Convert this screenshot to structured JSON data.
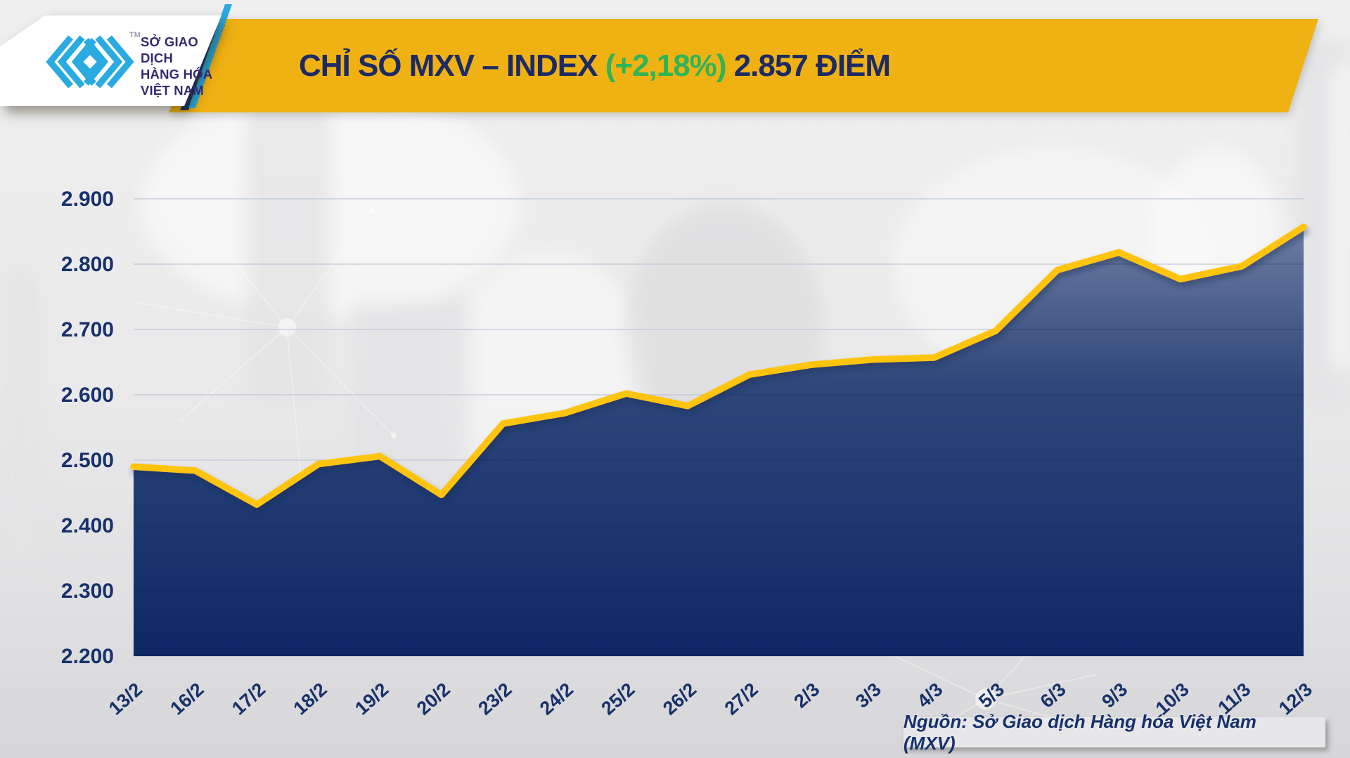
{
  "header": {
    "logo": {
      "lines": [
        "SỞ GIAO DỊCH",
        "HÀNG HÓA",
        "VIỆT NAM"
      ],
      "trademark": "TM"
    },
    "title": {
      "part1": "CHỈ SỐ MXV – INDEX ",
      "change": "(+2,18%)",
      "part2": " 2.857 ĐIỂM"
    }
  },
  "source_note": "Nguồn: Sở Giao dịch Hàng hóa Việt Nam (MXV)",
  "colors": {
    "banner_yellow": "#F0B213",
    "line_yellow": "#FFC40D",
    "title_navy": "#1C2A66",
    "change_green": "#2FB457",
    "axis_text_navy": "#17316B",
    "logo_cyan": "#29ABE2",
    "logo_text_indigo": "#332A6E",
    "slash_navy": "#1B2F6B",
    "gridline": "#B9C2D3",
    "fill_top": "#6F7FA2",
    "fill_mid": "#2E4679",
    "fill_bottom": "#0D2766"
  },
  "chart_data": {
    "type": "area",
    "title": "CHỈ SỐ MXV – INDEX (+2,18%) 2.857 ĐIỂM",
    "unit": "điểm",
    "change_percent": "+2,18%",
    "last_value_label": "2.857",
    "categories": [
      "13/2",
      "16/2",
      "17/2",
      "18/2",
      "19/2",
      "20/2",
      "23/2",
      "24/2",
      "25/2",
      "26/2",
      "27/2",
      "2/3",
      "3/3",
      "4/3",
      "5/3",
      "6/3",
      "9/3",
      "10/3",
      "11/3",
      "12/3"
    ],
    "series": [
      {
        "name": "MXV-Index",
        "values": [
          2490,
          2484,
          2432,
          2494,
          2506,
          2447,
          2556,
          2572,
          2602,
          2583,
          2631,
          2646,
          2654,
          2657,
          2698,
          2791,
          2818,
          2777,
          2797,
          2857
        ]
      }
    ],
    "ylim": [
      2200,
      2900
    ],
    "ytick_step": 100,
    "ytick_labels": [
      "2.200",
      "2.300",
      "2.400",
      "2.500",
      "2.600",
      "2.700",
      "2.800",
      "2.900"
    ],
    "xlabel": "",
    "ylabel": "",
    "grid": "horizontal",
    "legend": "none"
  }
}
